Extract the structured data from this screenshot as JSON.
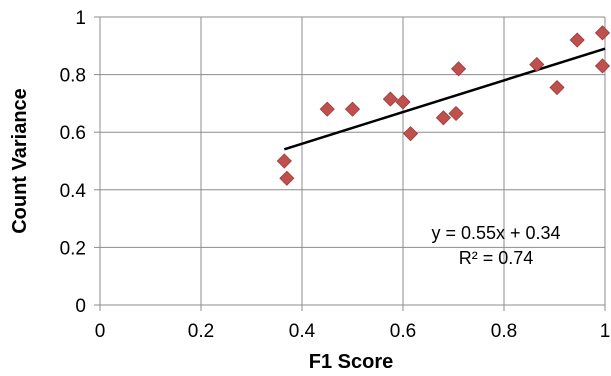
{
  "chart_data": {
    "type": "scatter",
    "title": "",
    "xlabel": "F1 Score",
    "ylabel": "Count Variance",
    "xlim": [
      0,
      1
    ],
    "ylim": [
      0,
      1
    ],
    "xticks": [
      0,
      0.2,
      0.4,
      0.6,
      0.8,
      1
    ],
    "yticks": [
      0,
      0.2,
      0.4,
      0.6,
      0.8,
      1
    ],
    "xtick_labels": [
      "0",
      "0.2",
      "0.4",
      "0.6",
      "0.8",
      "1"
    ],
    "ytick_labels": [
      "0",
      "0.2",
      "0.4",
      "0.6",
      "0.8",
      "1"
    ],
    "grid": true,
    "series": [
      {
        "color": "#c0504d",
        "marker": "diamond",
        "points": [
          {
            "x": 0.365,
            "y": 0.5
          },
          {
            "x": 0.37,
            "y": 0.44
          },
          {
            "x": 0.45,
            "y": 0.68
          },
          {
            "x": 0.5,
            "y": 0.68
          },
          {
            "x": 0.575,
            "y": 0.715
          },
          {
            "x": 0.6,
            "y": 0.705
          },
          {
            "x": 0.615,
            "y": 0.595
          },
          {
            "x": 0.68,
            "y": 0.65
          },
          {
            "x": 0.705,
            "y": 0.665
          },
          {
            "x": 0.71,
            "y": 0.82
          },
          {
            "x": 0.865,
            "y": 0.835
          },
          {
            "x": 0.905,
            "y": 0.755
          },
          {
            "x": 0.945,
            "y": 0.92
          },
          {
            "x": 0.995,
            "y": 0.945
          },
          {
            "x": 0.995,
            "y": 0.83
          }
        ]
      }
    ],
    "trendline": {
      "slope": 0.55,
      "intercept": 0.34,
      "x_range": [
        0.365,
        1.0
      ],
      "color": "#000000",
      "equation_label": "y = 0.55x + 0.34",
      "r2_label": "R² = 0.74"
    }
  }
}
